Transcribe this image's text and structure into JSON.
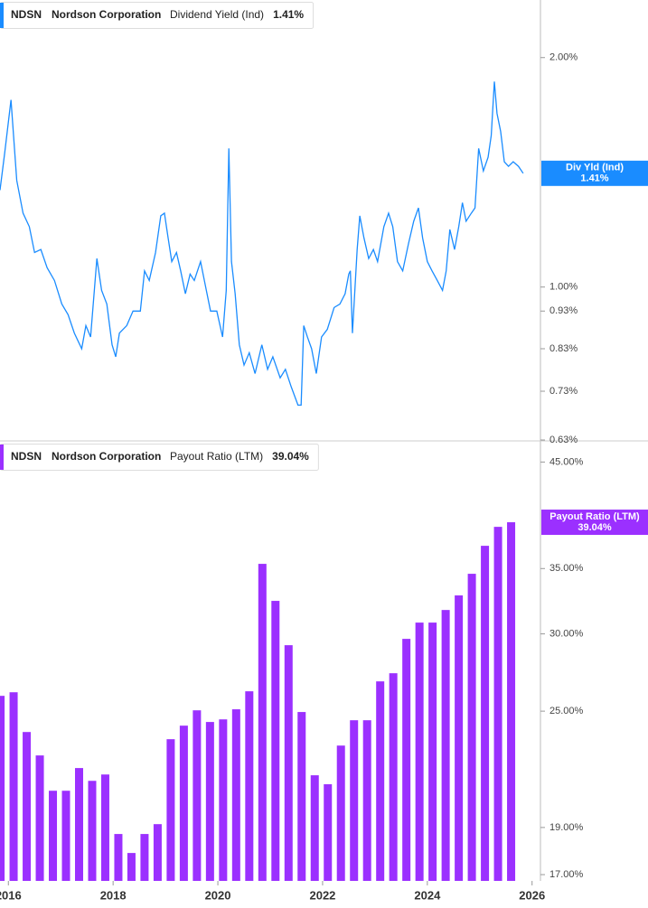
{
  "chart_data": [
    {
      "type": "line",
      "ticker": "NDSN",
      "company": "Nordson Corporation",
      "log_scale": true,
      "current_label": "1.41%",
      "xlim": [
        2015.84,
        2026.16
      ],
      "ylim": [
        0.63,
        2.38
      ],
      "yticks": [
        {
          "value": 2,
          "label": "2.00%"
        },
        {
          "value": 1,
          "label": "1.00%"
        },
        {
          "value": 0.93,
          "label": "0.93%"
        },
        {
          "value": 0.83,
          "label": "0.83%"
        },
        {
          "value": 0.73,
          "label": "0.73%"
        },
        {
          "value": 0.63,
          "label": "0.63%"
        }
      ],
      "series": [
        {
          "name": "Dividend Yield (Ind)",
          "badge_label": "Div Yld (Ind)",
          "color": "#1a8cff",
          "x": [
            2015.84,
            2015.93,
            2016.05,
            2016.16,
            2016.28,
            2016.4,
            2016.5,
            2016.62,
            2016.74,
            2016.88,
            2017.02,
            2017.14,
            2017.26,
            2017.4,
            2017.48,
            2017.57,
            2017.69,
            2017.78,
            2017.88,
            2017.98,
            2018.05,
            2018.12,
            2018.26,
            2018.38,
            2018.52,
            2018.6,
            2018.69,
            2018.81,
            2018.91,
            2018.98,
            2019.05,
            2019.12,
            2019.21,
            2019.29,
            2019.38,
            2019.47,
            2019.55,
            2019.67,
            2019.78,
            2019.86,
            2019.98,
            2020.09,
            2020.16,
            2020.21,
            2020.26,
            2020.33,
            2020.41,
            2020.5,
            2020.6,
            2020.71,
            2020.84,
            2020.95,
            2021.05,
            2021.19,
            2021.29,
            2021.4,
            2021.53,
            2021.59,
            2021.64,
            2021.71,
            2021.79,
            2021.88,
            2021.98,
            2022.09,
            2022.22,
            2022.33,
            2022.43,
            2022.5,
            2022.53,
            2022.57,
            2022.66,
            2022.71,
            2022.79,
            2022.88,
            2022.97,
            2023.05,
            2023.17,
            2023.26,
            2023.34,
            2023.43,
            2023.53,
            2023.64,
            2023.74,
            2023.83,
            2023.91,
            2024.0,
            2024.09,
            2024.19,
            2024.29,
            2024.36,
            2024.43,
            2024.52,
            2024.6,
            2024.67,
            2024.74,
            2024.84,
            2024.91,
            2024.98,
            2025.07,
            2025.16,
            2025.22,
            2025.28,
            2025.33,
            2025.4,
            2025.47,
            2025.55,
            2025.64,
            2025.74,
            2025.83
          ],
          "values": [
            1.34,
            1.5,
            1.76,
            1.38,
            1.25,
            1.2,
            1.11,
            1.12,
            1.06,
            1.02,
            0.95,
            0.92,
            0.87,
            0.83,
            0.89,
            0.86,
            1.09,
            0.99,
            0.95,
            0.84,
            0.81,
            0.87,
            0.89,
            0.93,
            0.93,
            1.05,
            1.02,
            1.11,
            1.24,
            1.25,
            1.16,
            1.08,
            1.11,
            1.05,
            0.98,
            1.04,
            1.02,
            1.08,
            0.99,
            0.93,
            0.93,
            0.86,
            0.99,
            1.52,
            1.08,
            0.98,
            0.84,
            0.79,
            0.82,
            0.77,
            0.84,
            0.78,
            0.81,
            0.76,
            0.78,
            0.74,
            0.7,
            0.7,
            0.89,
            0.86,
            0.83,
            0.77,
            0.86,
            0.88,
            0.94,
            0.95,
            0.98,
            1.04,
            1.05,
            0.87,
            1.12,
            1.24,
            1.16,
            1.09,
            1.12,
            1.08,
            1.2,
            1.25,
            1.2,
            1.08,
            1.05,
            1.14,
            1.22,
            1.27,
            1.16,
            1.08,
            1.05,
            1.02,
            0.99,
            1.05,
            1.19,
            1.12,
            1.2,
            1.29,
            1.22,
            1.25,
            1.27,
            1.52,
            1.42,
            1.48,
            1.58,
            1.86,
            1.69,
            1.6,
            1.46,
            1.44,
            1.46,
            1.44,
            1.41
          ]
        }
      ]
    },
    {
      "type": "bar",
      "ticker": "NDSN",
      "company": "Nordson Corporation",
      "log_scale": true,
      "current_label": "39.04%",
      "xlim": [
        2015.84,
        2026.16
      ],
      "xticks": [
        2016,
        2018,
        2020,
        2022,
        2024,
        2026
      ],
      "ylim": [
        16.75,
        47.2
      ],
      "yticks": [
        {
          "value": 45,
          "label": "45.00%"
        },
        {
          "value": 35,
          "label": "35.00%"
        },
        {
          "value": 30,
          "label": "30.00%"
        },
        {
          "value": 25,
          "label": "25.00%"
        },
        {
          "value": 19,
          "label": "19.00%"
        },
        {
          "value": 17,
          "label": "17.00%"
        }
      ],
      "series": [
        {
          "name": "Payout Ratio (LTM)",
          "color": "#9b30ff",
          "x": [
            2015.85,
            2016.1,
            2016.35,
            2016.6,
            2016.85,
            2017.1,
            2017.35,
            2017.6,
            2017.85,
            2018.1,
            2018.35,
            2018.6,
            2018.85,
            2019.1,
            2019.35,
            2019.6,
            2019.85,
            2020.1,
            2020.35,
            2020.6,
            2020.85,
            2021.1,
            2021.35,
            2021.6,
            2021.85,
            2022.1,
            2022.35,
            2022.6,
            2022.85,
            2023.1,
            2023.35,
            2023.6,
            2023.85,
            2024.1,
            2024.35,
            2024.6,
            2024.85,
            2025.1,
            2025.35,
            2025.6
          ],
          "values": [
            25.92,
            26.14,
            23.8,
            22.52,
            20.72,
            20.72,
            21.86,
            21.21,
            21.53,
            18.71,
            17.89,
            18.71,
            19.15,
            23.4,
            24.16,
            25.05,
            24.37,
            24.52,
            25.11,
            26.2,
            35.39,
            32.43,
            29.21,
            24.95,
            21.49,
            21.04,
            23.05,
            24.47,
            24.47,
            26.82,
            27.34,
            29.65,
            30.81,
            30.81,
            31.74,
            32.85,
            34.57,
            36.93,
            38.62,
            39.04
          ]
        }
      ]
    }
  ]
}
